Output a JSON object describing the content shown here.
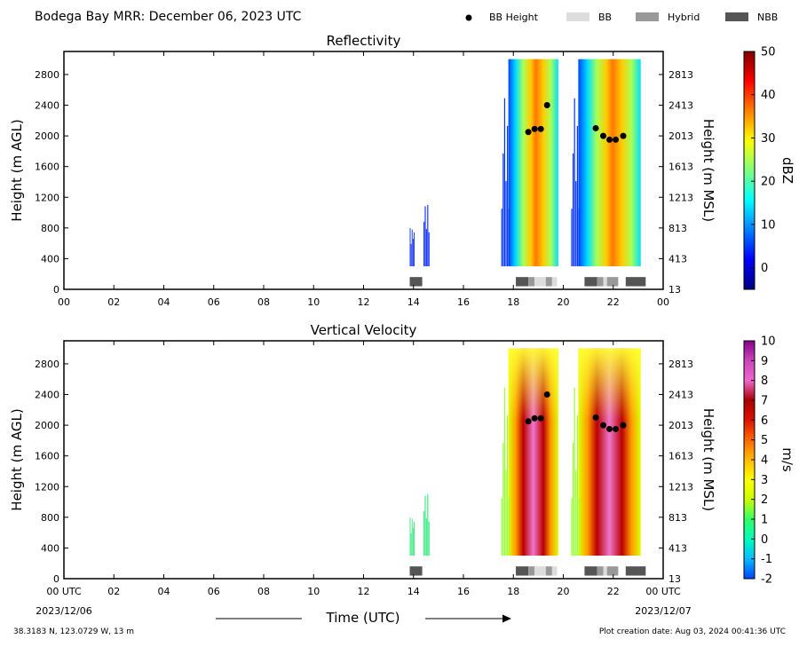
{
  "header": {
    "title": "Bodega Bay MRR:  December 06, 2023 UTC",
    "legend": [
      {
        "label": "BB Height",
        "kind": "marker",
        "color": "#000000"
      },
      {
        "label": "BB",
        "kind": "swatch",
        "color": "#dddddd"
      },
      {
        "label": "Hybrid",
        "kind": "swatch",
        "color": "#999999"
      },
      {
        "label": "NBB",
        "kind": "swatch",
        "color": "#555555"
      }
    ]
  },
  "axes_common": {
    "ylabel_left": "Height (m AGL)",
    "ylabel_right": "Height (m MSL)",
    "y_ticks_left": [
      "0",
      "400",
      "800",
      "1200",
      "1600",
      "2000",
      "2400",
      "2800"
    ],
    "y_ticks_right": [
      "13",
      "413",
      "813",
      "1213",
      "1613",
      "2013",
      "2413",
      "2813"
    ],
    "x_ticks_top": [
      "00",
      "02",
      "04",
      "06",
      "08",
      "10",
      "12",
      "14",
      "16",
      "18",
      "20",
      "22",
      "00"
    ],
    "x_ticks_bottom": [
      "00 UTC",
      "02",
      "04",
      "06",
      "08",
      "10",
      "12",
      "14",
      "16",
      "18",
      "20",
      "22",
      "00 UTC"
    ],
    "date_start": "2023/12/06",
    "date_end": "2023/12/07",
    "xlabel": "Time (UTC)"
  },
  "footer": {
    "location": "38.3183 N, 123.0729 W, 13 m",
    "creation": "Plot creation date: Aug 03, 2024 00:41:36 UTC"
  },
  "chart_data": [
    {
      "type": "heatmap",
      "title": "Reflectivity",
      "xlim": [
        0,
        24
      ],
      "ylim": [
        0,
        3100
      ],
      "colorbar": {
        "label": "dBZ",
        "ticks": [
          "50",
          "40",
          "30",
          "20",
          "10",
          "0"
        ],
        "range": [
          -5,
          50
        ],
        "colors": [
          "#00007f",
          "#0000ff",
          "#007fff",
          "#00ffff",
          "#7fff7f",
          "#ffff00",
          "#ff7f00",
          "#ff0000",
          "#7f0000"
        ]
      },
      "echo_regions": [
        {
          "t_start": 13.85,
          "t_end": 14.05,
          "h_top": 800,
          "level": "weak"
        },
        {
          "t_start": 14.4,
          "t_end": 14.65,
          "h_top": 1100,
          "level": "weak"
        },
        {
          "t_start": 17.8,
          "t_end": 19.8,
          "h_top": 3000,
          "level": "strong",
          "core": 19.0
        },
        {
          "t_start": 20.6,
          "t_end": 23.1,
          "h_top": 3000,
          "level": "strong",
          "core": 21.7
        }
      ],
      "bb_height": [
        {
          "t": 18.6,
          "h": 2050
        },
        {
          "t": 18.85,
          "h": 2090
        },
        {
          "t": 19.1,
          "h": 2090
        },
        {
          "t": 19.35,
          "h": 2400
        },
        {
          "t": 21.3,
          "h": 2100
        },
        {
          "t": 21.6,
          "h": 2000
        },
        {
          "t": 21.85,
          "h": 1950
        },
        {
          "t": 22.1,
          "h": 1950
        },
        {
          "t": 22.4,
          "h": 2000
        }
      ]
    },
    {
      "type": "heatmap",
      "title": "Vertical Velocity",
      "xlim": [
        0,
        24
      ],
      "ylim": [
        0,
        3100
      ],
      "colorbar": {
        "label": "m/s",
        "ticks": [
          "10",
          "9",
          "8",
          "7",
          "6",
          "5",
          "4",
          "3",
          "2",
          "1",
          "0",
          "-1",
          "-2"
        ],
        "range": [
          -2,
          10
        ],
        "colors": [
          "#0044ff",
          "#00bbff",
          "#00ffbb",
          "#33ff66",
          "#ccff00",
          "#ffff00",
          "#ffbb00",
          "#ff6600",
          "#dd1100",
          "#aa0000",
          "#ee66cc",
          "#cc44bb",
          "#880088"
        ]
      },
      "echo_regions": [
        {
          "t_start": 13.85,
          "t_end": 14.05,
          "h_top": 800,
          "level": "weak"
        },
        {
          "t_start": 14.4,
          "t_end": 14.65,
          "h_top": 1100,
          "level": "weak"
        },
        {
          "t_start": 17.8,
          "t_end": 19.8,
          "h_top": 3000,
          "level": "strong",
          "core": 19.0
        },
        {
          "t_start": 20.6,
          "t_end": 23.1,
          "h_top": 3000,
          "level": "strong",
          "core": 21.7
        }
      ],
      "bb_height": [
        {
          "t": 18.6,
          "h": 2050
        },
        {
          "t": 18.85,
          "h": 2090
        },
        {
          "t": 19.1,
          "h": 2090
        },
        {
          "t": 19.35,
          "h": 2400
        },
        {
          "t": 21.3,
          "h": 2100
        },
        {
          "t": 21.6,
          "h": 2000
        },
        {
          "t": 21.85,
          "h": 1950
        },
        {
          "t": 22.1,
          "h": 1950
        },
        {
          "t": 22.4,
          "h": 2000
        }
      ]
    }
  ],
  "bb_type_bars": [
    {
      "t_start": 13.85,
      "t_end": 14.35,
      "type": "NBB"
    },
    {
      "t_start": 18.1,
      "t_end": 18.6,
      "type": "NBB"
    },
    {
      "t_start": 18.6,
      "t_end": 18.85,
      "type": "Hybrid"
    },
    {
      "t_start": 18.85,
      "t_end": 19.3,
      "type": "BB"
    },
    {
      "t_start": 19.3,
      "t_end": 19.55,
      "type": "Hybrid"
    },
    {
      "t_start": 19.55,
      "t_end": 19.75,
      "type": "BB"
    },
    {
      "t_start": 20.85,
      "t_end": 21.35,
      "type": "NBB"
    },
    {
      "t_start": 21.35,
      "t_end": 21.6,
      "type": "Hybrid"
    },
    {
      "t_start": 21.6,
      "t_end": 21.75,
      "type": "BB"
    },
    {
      "t_start": 21.75,
      "t_end": 22.2,
      "type": "Hybrid"
    },
    {
      "t_start": 22.5,
      "t_end": 23.3,
      "type": "NBB"
    }
  ]
}
